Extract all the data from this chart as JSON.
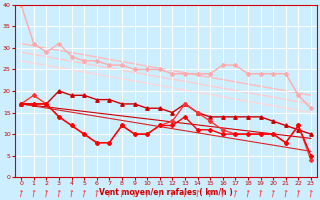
{
  "xlabel": "Vent moyen/en rafales ( km/h )",
  "xlim": [
    -0.5,
    23.5
  ],
  "ylim": [
    0,
    40
  ],
  "yticks": [
    0,
    5,
    10,
    15,
    20,
    25,
    30,
    35,
    40
  ],
  "xticks": [
    0,
    1,
    2,
    3,
    4,
    5,
    6,
    7,
    8,
    9,
    10,
    11,
    12,
    13,
    14,
    15,
    16,
    17,
    18,
    19,
    20,
    21,
    22,
    23
  ],
  "bg_color": "#cceeff",
  "grid_color": "#ffffff",
  "series": [
    {
      "x": [
        0,
        1,
        2,
        3,
        4,
        5,
        6,
        7,
        8,
        9,
        10,
        11,
        12,
        13,
        14,
        15,
        16,
        17,
        18,
        19,
        20,
        21,
        22,
        23
      ],
      "y": [
        40,
        31,
        29,
        31,
        28,
        27,
        27,
        26,
        26,
        25,
        25,
        25,
        24,
        24,
        24,
        24,
        26,
        26,
        24,
        24,
        24,
        24,
        19,
        16
      ],
      "color": "#ffaaaa",
      "marker": "D",
      "markersize": 2.0,
      "linewidth": 1.0,
      "zorder": 2
    },
    {
      "x": [
        0,
        23
      ],
      "y": [
        31,
        19
      ],
      "color": "#ffbbbb",
      "marker": null,
      "linewidth": 1.0,
      "zorder": 1
    },
    {
      "x": [
        0,
        23
      ],
      "y": [
        29,
        17
      ],
      "color": "#ffcccc",
      "marker": null,
      "linewidth": 1.0,
      "zorder": 1
    },
    {
      "x": [
        0,
        23
      ],
      "y": [
        27,
        15
      ],
      "color": "#ffd5d5",
      "marker": null,
      "linewidth": 1.0,
      "zorder": 1
    },
    {
      "x": [
        0,
        1,
        2,
        3,
        4,
        5,
        6,
        7,
        8,
        9,
        10,
        11,
        12,
        13,
        14,
        15,
        16,
        17,
        18,
        19,
        20,
        21,
        22,
        23
      ],
      "y": [
        17,
        17,
        17,
        20,
        19,
        19,
        18,
        18,
        17,
        17,
        16,
        16,
        15,
        17,
        15,
        14,
        14,
        14,
        14,
        14,
        13,
        12,
        11,
        10
      ],
      "color": "#cc0000",
      "marker": "^",
      "markersize": 2.5,
      "linewidth": 1.0,
      "zorder": 3
    },
    {
      "x": [
        0,
        23
      ],
      "y": [
        17,
        9
      ],
      "color": "#cc0000",
      "marker": null,
      "linewidth": 0.8,
      "zorder": 2
    },
    {
      "x": [
        0,
        23
      ],
      "y": [
        17,
        6
      ],
      "color": "#dd2222",
      "marker": null,
      "linewidth": 0.8,
      "zorder": 2
    },
    {
      "x": [
        0,
        1,
        2,
        3,
        4,
        5,
        6,
        7,
        8,
        9,
        10,
        11,
        12,
        13,
        14,
        15,
        16,
        17,
        18,
        19,
        20,
        21,
        22,
        23
      ],
      "y": [
        17,
        17,
        17,
        14,
        12,
        10,
        8,
        8,
        12,
        10,
        10,
        12,
        12,
        14,
        11,
        11,
        10,
        10,
        10,
        10,
        10,
        8,
        12,
        5
      ],
      "color": "#ff0000",
      "marker": "D",
      "markersize": 2.0,
      "linewidth": 1.0,
      "zorder": 4
    },
    {
      "x": [
        0,
        1,
        2,
        3,
        4,
        5,
        6,
        7,
        8,
        9,
        10,
        11,
        12,
        13,
        14,
        15,
        16,
        17,
        18,
        19,
        20,
        21,
        22,
        23
      ],
      "y": [
        17,
        19,
        17,
        14,
        12,
        10,
        8,
        8,
        12,
        10,
        10,
        12,
        13,
        17,
        15,
        13,
        11,
        10,
        10,
        10,
        10,
        8,
        12,
        4
      ],
      "color": "#ff3333",
      "marker": "D",
      "markersize": 2.0,
      "linewidth": 1.0,
      "zorder": 3
    }
  ],
  "arrow_color": "#ff4444"
}
